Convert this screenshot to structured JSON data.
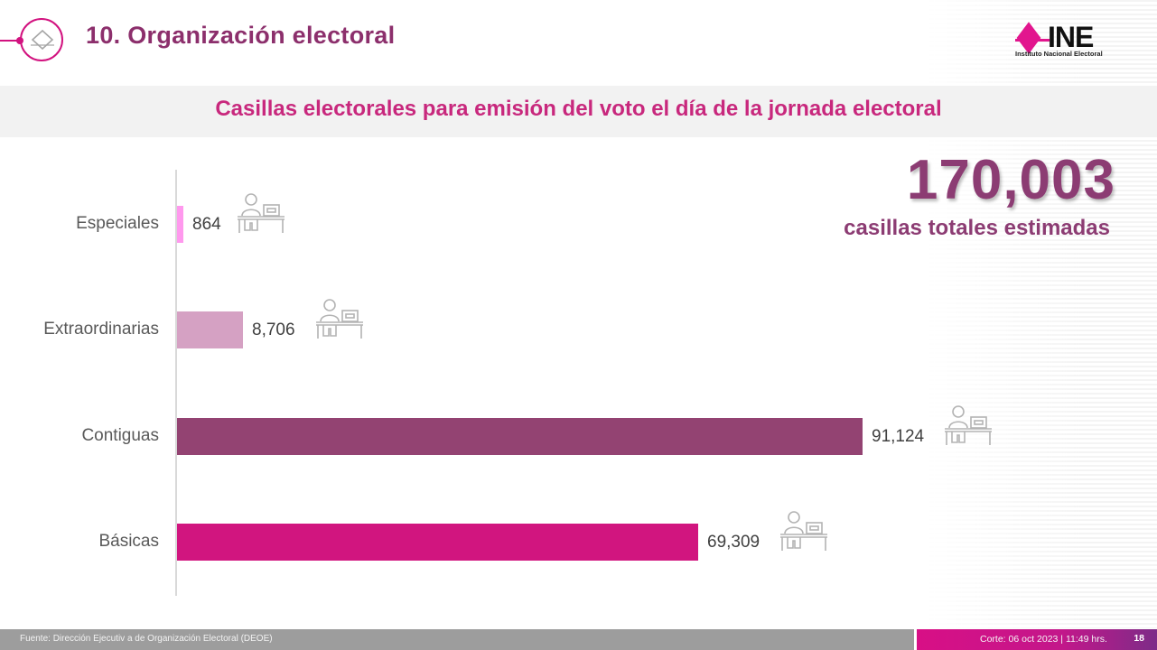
{
  "header": {
    "title": "10. Organización electoral",
    "logo_text": "INE",
    "logo_subtitle": "Instituto Nacional Electoral"
  },
  "subtitle": "Casillas electorales para emisión del voto el día de la jornada electoral",
  "total": {
    "value": "170,003",
    "label": "casillas totales estimadas"
  },
  "chart_data": {
    "type": "bar",
    "orientation": "horizontal",
    "title": "Casillas electorales para emisión del voto el día de la jornada electoral",
    "categories": [
      "Especiales",
      "Extraordinarias",
      "Contiguas",
      "Básicas"
    ],
    "values": [
      864,
      8706,
      91124,
      69309
    ],
    "value_labels": [
      "864",
      "8,706",
      "91,124",
      "69,309"
    ],
    "colors": [
      "#ff99ee",
      "#d5a1c3",
      "#934372",
      "#d1157f"
    ],
    "xlabel": "",
    "ylabel": "",
    "xlim": [
      0,
      100000
    ],
    "grid": false,
    "legend": "none",
    "annotations": [
      "170,003 casillas totales estimadas"
    ]
  },
  "icons": {
    "bar_icon": "person-at-desk-icon",
    "header_icon": "diamond-icon"
  },
  "footer": {
    "source": "Fuente: Dirección Ejecutiv a de Organización Electoral (DEOE)",
    "cutoff": "Corte: 06 oct 2023 | 11:49 hrs.",
    "page_number": "18"
  },
  "colors": {
    "brand_magenta": "#d2127f",
    "title_purple": "#8c2f6c",
    "subtitle_pink": "#c8287d",
    "footer_gray": "#9d9d9d"
  }
}
